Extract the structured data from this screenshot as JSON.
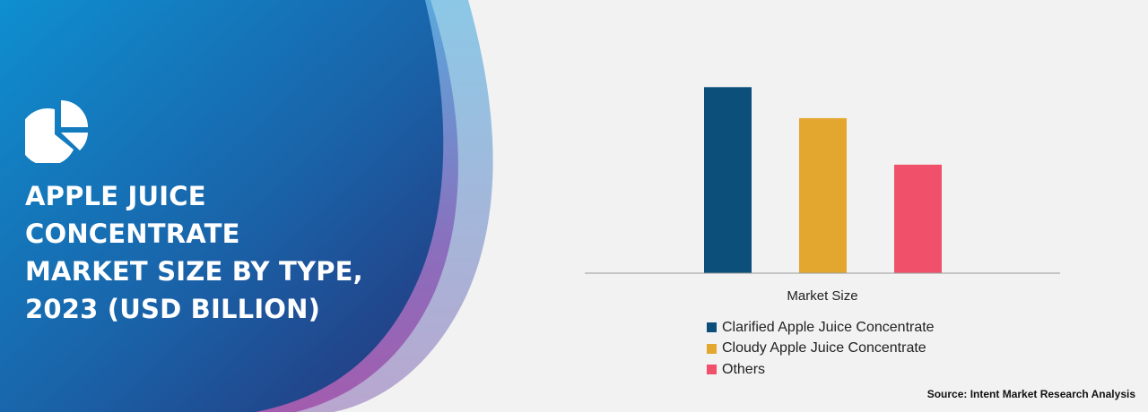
{
  "header": {
    "title_lines": [
      "APPLE JUICE",
      "CONCENTRATE",
      "MARKET SIZE BY TYPE,",
      "2023 (USD BILLION)"
    ],
    "icon": "pie-chart-icon"
  },
  "chart_data": {
    "type": "bar",
    "categories": [
      "Market Size"
    ],
    "series": [
      {
        "name": "Clarified Apple Juice Concentrate",
        "values": [
          2.4
        ],
        "color": "#0b4f7a"
      },
      {
        "name": "Cloudy Apple Juice Concentrate",
        "values": [
          2.0
        ],
        "color": "#e3a72f"
      },
      {
        "name": "Others",
        "values": [
          1.4
        ],
        "color": "#f05069"
      }
    ],
    "xlabel": "Market Size",
    "ylabel": "",
    "ylim": [
      0,
      2.6
    ],
    "grid": false,
    "legend_position": "bottom"
  },
  "source": "Source: Intent Market Research Analysis",
  "colors": {
    "panel_gradient_start": "#0e8fd0",
    "panel_gradient_end": "#243a7e",
    "purple_band": "#9b5fb4",
    "background": "#f2f2f2"
  }
}
